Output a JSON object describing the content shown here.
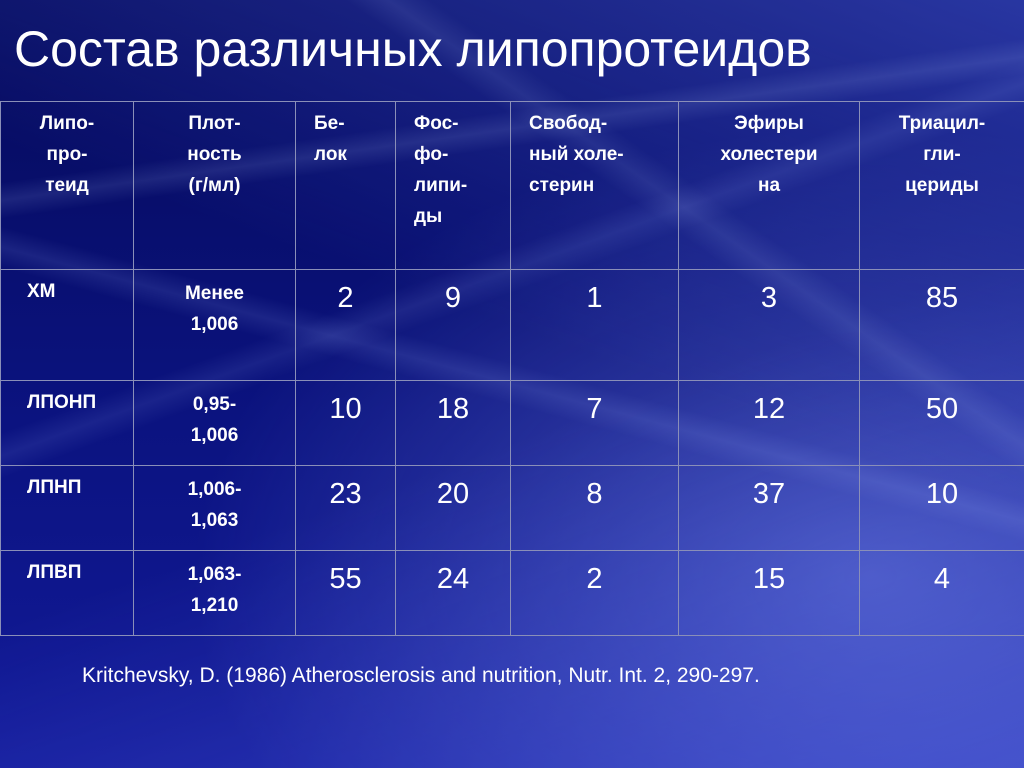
{
  "title": "Состав различных липопротеидов",
  "table": {
    "headers": [
      [
        "Липо-",
        "про-",
        "теид"
      ],
      [
        "Плот-",
        "ность",
        "(г/мл)"
      ],
      [
        "Бе-",
        "лок"
      ],
      [
        "Фос-",
        "фо-",
        "липи-",
        "ды"
      ],
      [
        "Свобод-",
        "ный холе-",
        "стерин"
      ],
      [
        "Эфиры",
        "холестери",
        "на"
      ],
      [
        "Триацил-",
        "гли-",
        "цериды"
      ]
    ],
    "rows": [
      {
        "name": "ХМ",
        "density": [
          "Менее",
          "1,006"
        ],
        "values": [
          "2",
          "9",
          "1",
          "3",
          "85"
        ]
      },
      {
        "name": "ЛПОНП",
        "density": [
          "0,95-",
          "1,006"
        ],
        "values": [
          "10",
          "18",
          "7",
          "12",
          "50"
        ]
      },
      {
        "name": "ЛПНП",
        "density": [
          "1,006-",
          "1,063"
        ],
        "values": [
          "23",
          "20",
          "8",
          "37",
          "10"
        ]
      },
      {
        "name": "ЛПВП",
        "density": [
          "1,063-",
          "1,210"
        ],
        "values": [
          "55",
          "24",
          "2",
          "15",
          "4"
        ]
      }
    ]
  },
  "citation": "Kritchevsky, D. (1986) Atherosclerosis and nutrition, Nutr. Int. 2, 290-297.",
  "colors": {
    "background": "#0a0f6e",
    "text": "#ffffff",
    "grid": "#8a8fb8"
  }
}
